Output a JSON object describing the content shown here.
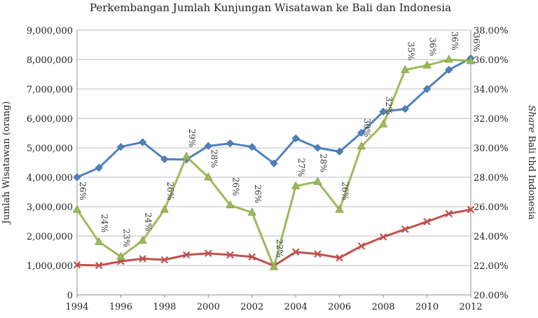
{
  "chart_data": {
    "type": "line",
    "title": "Perkembangan Jumlah Kunjungan Wisatawan ke Bali dan Indonesia",
    "ylabel": "Jumlah Wisatawan (orang)",
    "ylabel2_prefix": "Share",
    "ylabel2_rest": " Bali thd Indonesia",
    "x": [
      1994,
      1995,
      1996,
      1997,
      1998,
      1999,
      2000,
      2001,
      2002,
      2003,
      2004,
      2005,
      2006,
      2007,
      2008,
      2009,
      2010,
      2011,
      2012
    ],
    "xticks": [
      "1994",
      "1996",
      "1998",
      "2000",
      "2002",
      "2004",
      "2006",
      "2008",
      "2010",
      "2012"
    ],
    "xlim": [
      1994,
      2012
    ],
    "ylim": [
      0,
      9000000
    ],
    "yticks": [
      "0",
      "1,000,000",
      "2,000,000",
      "3,000,000",
      "4,000,000",
      "5,000,000",
      "6,000,000",
      "7,000,000",
      "8,000,000",
      "9,000,000"
    ],
    "y2lim": [
      20,
      38
    ],
    "y2ticks": [
      "20.00%",
      "22.00%",
      "24.00%",
      "26.00%",
      "28.00%",
      "30.00%",
      "32.00%",
      "34.00%",
      "36.00%",
      "38.00%"
    ],
    "grid": true,
    "series": [
      {
        "axis": "left",
        "color": "#4f81bd",
        "marker": "diamond",
        "values": [
          4000000,
          4320000,
          5030000,
          5190000,
          4610000,
          4600000,
          5060000,
          5150000,
          5030000,
          4470000,
          5320000,
          5000000,
          4870000,
          5510000,
          6230000,
          6320000,
          7000000,
          7650000,
          8040000
        ]
      },
      {
        "axis": "left",
        "color": "#c0504d",
        "marker": "x",
        "values": [
          1020000,
          1000000,
          1140000,
          1230000,
          1190000,
          1360000,
          1410000,
          1360000,
          1290000,
          990000,
          1460000,
          1390000,
          1260000,
          1660000,
          1970000,
          2230000,
          2490000,
          2760000,
          2900000
        ]
      },
      {
        "axis": "right",
        "color": "#9bbb59",
        "marker": "triangle",
        "values": [
          25.8,
          23.6,
          22.6,
          23.7,
          25.8,
          29.4,
          28.0,
          26.1,
          25.6,
          21.9,
          27.4,
          27.7,
          25.8,
          30.1,
          31.6,
          35.3,
          35.6,
          36.0,
          35.9
        ],
        "labels": [
          "26%",
          "24%",
          "23%",
          "24%",
          "26%",
          "29%",
          "28%",
          "26%",
          "26%",
          "22%",
          "27%",
          "28%",
          "26%",
          "30%",
          "32%",
          "35%",
          "36%",
          "36%",
          "36%"
        ]
      }
    ]
  }
}
